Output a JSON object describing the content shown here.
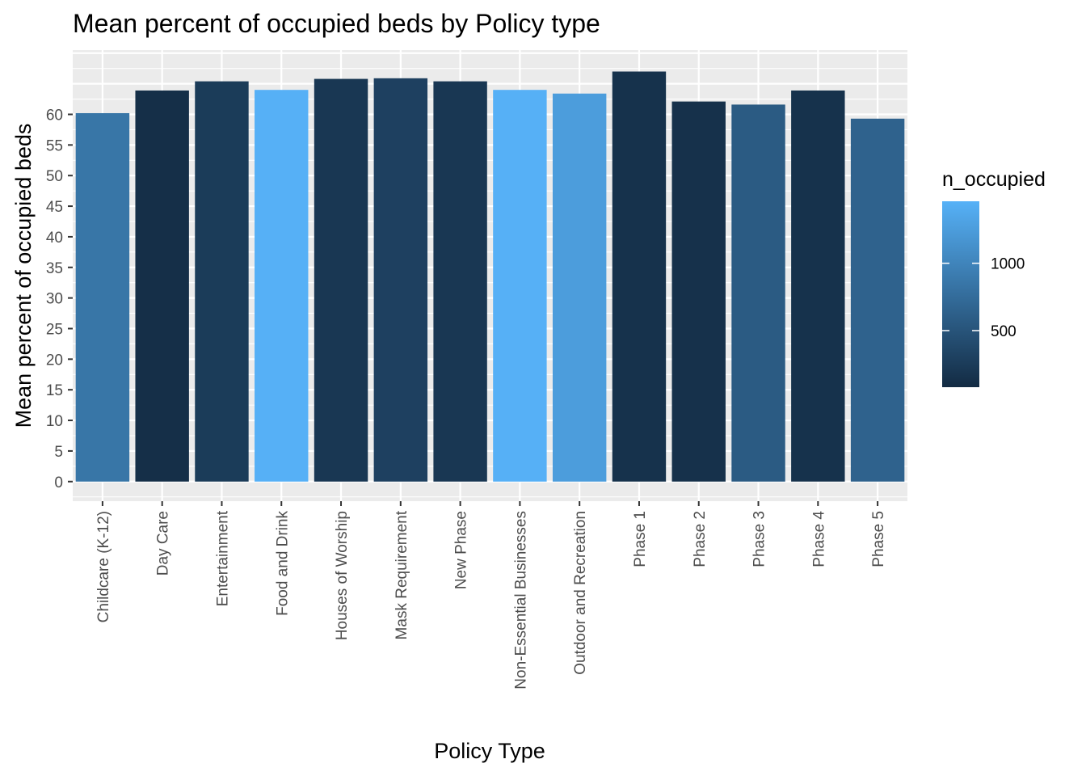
{
  "chart_data": {
    "type": "bar",
    "title": "Mean percent of occupied beds by Policy type",
    "xlabel": "Policy Type",
    "ylabel": "Mean percent of occupied beds",
    "categories": [
      "Childcare (K-12)",
      "Day Care",
      "Entertainment",
      "Food and Drink",
      "Houses of Worship",
      "Mask Requirement",
      "New Phase",
      "Non-Essential Businesses",
      "Outdoor and Recreation",
      "Phase 1",
      "Phase 2",
      "Phase 3",
      "Phase 4",
      "Phase 5"
    ],
    "values": [
      60.2,
      63.9,
      65.4,
      64.0,
      65.8,
      65.9,
      65.4,
      64.0,
      63.4,
      67.0,
      62.1,
      61.6,
      63.9,
      59.3
    ],
    "fill_values": [
      850,
      120,
      250,
      1450,
      200,
      300,
      200,
      1450,
      1250,
      150,
      140,
      570,
      150,
      650
    ],
    "ylim": [
      -3.2,
      70.5
    ],
    "yticks": [
      0,
      5,
      10,
      15,
      20,
      25,
      30,
      35,
      40,
      45,
      50,
      55,
      60
    ],
    "grid": true,
    "legend": {
      "title": "n_occupied",
      "position": "right",
      "range": [
        80,
        1460
      ],
      "ticks": [
        500,
        1000
      ],
      "low_color": "#132b43",
      "high_color": "#56b1f7"
    },
    "panel_color": "#ebebeb",
    "grid_color": "#ffffff"
  }
}
